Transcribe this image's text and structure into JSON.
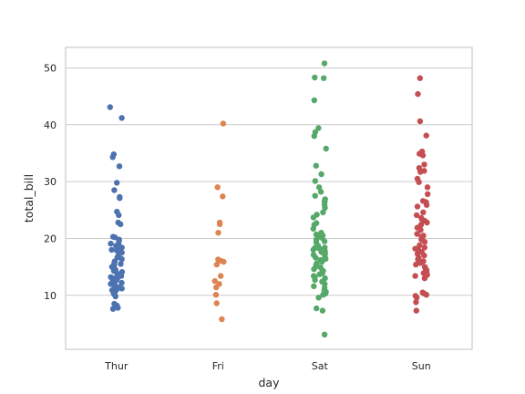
{
  "chart_data": {
    "type": "scatter",
    "subtype": "strip",
    "xlabel": "day",
    "ylabel": "total_bill",
    "categories": [
      "Thur",
      "Fri",
      "Sat",
      "Sun"
    ],
    "ylim": [
      0.5,
      53.6
    ],
    "yticks": [
      10,
      20,
      30,
      40,
      50
    ],
    "grid": "y",
    "colors": [
      "#4c72b0",
      "#dd8452",
      "#55a868",
      "#c44e52"
    ],
    "series": [
      {
        "values": [
          43.1,
          41.2,
          34.8,
          34.3,
          32.7,
          29.8,
          28.5,
          27.3,
          27.1,
          24.7,
          24.1,
          22.8,
          22.5,
          20.3,
          20.2,
          19.8,
          19.5,
          19.1,
          18.8,
          18.7,
          18.4,
          18.3,
          18.0,
          17.9,
          17.5,
          17.3,
          16.9,
          16.7,
          16.4,
          16.3,
          16.0,
          15.7,
          15.5,
          15.4,
          15.0,
          14.8,
          14.5,
          14.3,
          14.1,
          13.8,
          13.5,
          13.4,
          13.2,
          13.0,
          12.9,
          12.7,
          12.6,
          12.4,
          12.2,
          12.0,
          11.9,
          11.6,
          11.4,
          11.2,
          11.0,
          10.9,
          10.7,
          10.3,
          10.1,
          9.8,
          8.5,
          8.2,
          7.8,
          7.6
        ]
      },
      {
        "values": [
          40.2,
          29.0,
          27.4,
          22.8,
          22.5,
          21.0,
          16.3,
          16.1,
          15.9,
          15.4,
          13.4,
          12.5,
          12.0,
          11.4,
          10.1,
          8.6,
          5.8
        ]
      },
      {
        "values": [
          50.8,
          48.3,
          48.2,
          44.3,
          39.4,
          38.7,
          38.0,
          35.8,
          32.8,
          31.3,
          30.1,
          29.0,
          28.2,
          27.5,
          26.9,
          26.6,
          26.4,
          25.9,
          25.4,
          24.6,
          24.2,
          23.7,
          22.7,
          22.4,
          21.7,
          21.0,
          20.7,
          20.5,
          20.3,
          20.1,
          19.8,
          19.5,
          19.3,
          18.7,
          18.4,
          18.3,
          18.2,
          18.0,
          17.8,
          17.6,
          17.4,
          17.1,
          16.9,
          16.6,
          16.4,
          16.2,
          15.9,
          15.6,
          15.4,
          15.1,
          14.9,
          14.6,
          14.3,
          14.1,
          13.9,
          13.7,
          13.4,
          13.2,
          13.0,
          12.7,
          12.4,
          12.0,
          11.6,
          11.3,
          10.9,
          10.6,
          10.3,
          10.1,
          9.6,
          7.7,
          7.3,
          3.1
        ]
      },
      {
        "values": [
          48.2,
          45.4,
          40.6,
          38.1,
          35.3,
          34.9,
          34.6,
          33.0,
          32.4,
          31.9,
          31.7,
          30.5,
          29.9,
          29.0,
          27.8,
          26.6,
          26.4,
          25.9,
          25.6,
          24.6,
          24.1,
          23.6,
          23.3,
          23.1,
          22.8,
          22.4,
          21.9,
          21.5,
          20.8,
          20.5,
          20.3,
          20.1,
          19.8,
          19.4,
          18.8,
          18.4,
          18.2,
          17.9,
          17.6,
          17.3,
          17.0,
          16.6,
          16.3,
          16.0,
          15.7,
          15.4,
          15.0,
          14.7,
          14.4,
          14.1,
          13.9,
          13.6,
          13.4,
          13.0,
          10.5,
          10.3,
          10.1,
          9.9,
          9.6,
          8.8,
          7.3
        ]
      }
    ]
  }
}
